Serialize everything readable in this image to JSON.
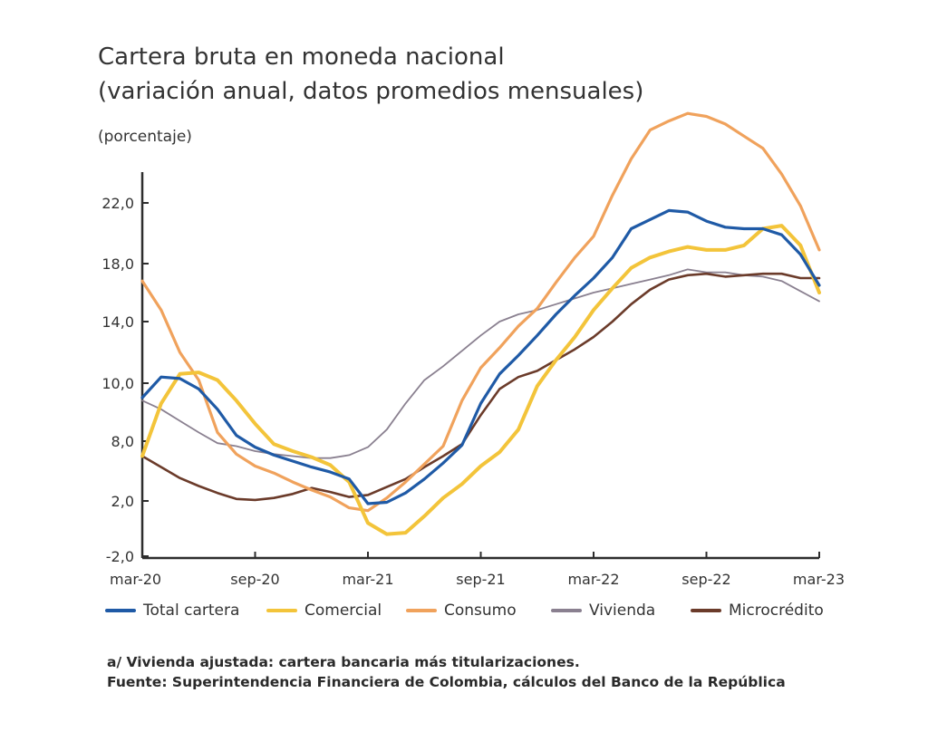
{
  "title_line1": "Cartera bruta en moneda nacional",
  "title_line2": "(variación anual, datos promedios mensuales)",
  "unit_label": "(porcentaje)",
  "notes": {
    "note": "a/ Vivienda ajustada: cartera bancaria más titularizaciones.",
    "source": "Fuente: Superintendencia Financiera de Colombia, cálculos del Banco de la República"
  },
  "chart_data": {
    "type": "line",
    "title": "Cartera bruta en moneda nacional (variación anual, datos promedios mensuales)",
    "ylabel": "(porcentaje)",
    "x": [
      "mar-20",
      "abr-20",
      "may-20",
      "jun-20",
      "jul-20",
      "ago-20",
      "sep-20",
      "oct-20",
      "nov-20",
      "dic-20",
      "ene-21",
      "feb-21",
      "mar-21",
      "abr-21",
      "may-21",
      "jun-21",
      "jul-21",
      "ago-21",
      "sep-21",
      "oct-21",
      "nov-21",
      "dic-21",
      "ene-22",
      "feb-22",
      "mar-22",
      "abr-22",
      "may-22",
      "jun-22",
      "jul-22",
      "ago-22",
      "sep-22",
      "oct-22",
      "nov-22",
      "dic-22",
      "ene-23",
      "feb-23",
      "mar-23"
    ],
    "x_tick_labels": [
      "mar-20",
      "sep-20",
      "mar-21",
      "sep-21",
      "mar-22",
      "sep-22",
      "mar-23"
    ],
    "y_tick_labels": [
      "-2,0",
      "2,0",
      "8,0",
      "10,0",
      "14,0",
      "18,0",
      "22,0"
    ],
    "grid": false,
    "legend_position": "bottom",
    "series": [
      {
        "name": "Total cartera",
        "color": "#1f5aa6",
        "values": [
          9.5,
          10.4,
          10.3,
          9.8,
          9.1,
          8.2,
          7.4,
          6.6,
          6.0,
          5.4,
          4.9,
          4.2,
          1.8,
          1.9,
          2.8,
          4.2,
          5.8,
          7.6,
          9.3,
          10.6,
          11.8,
          13.1,
          14.5,
          15.8,
          17.0,
          18.4,
          20.3,
          20.9,
          21.5,
          21.4,
          20.8,
          20.4,
          20.3,
          20.3,
          19.9,
          18.6,
          16.5
        ]
      },
      {
        "name": "Comercial",
        "color": "#f3c43a",
        "values": [
          6.5,
          9.3,
          10.6,
          10.7,
          10.2,
          9.4,
          8.6,
          7.7,
          7.0,
          6.4,
          5.6,
          3.9,
          0.4,
          -0.4,
          -0.3,
          0.9,
          2.3,
          3.7,
          5.5,
          6.9,
          8.4,
          9.9,
          11.5,
          13.0,
          14.8,
          16.3,
          17.7,
          18.4,
          18.8,
          19.1,
          18.9,
          18.9,
          19.2,
          20.3,
          20.5,
          19.2,
          16.0
        ]
      },
      {
        "name": "Consumo",
        "color": "#f0a25c",
        "values": [
          16.8,
          14.8,
          12.0,
          10.2,
          8.3,
          6.7,
          5.5,
          4.8,
          3.9,
          3.1,
          2.4,
          1.5,
          1.3,
          2.3,
          3.9,
          5.7,
          7.5,
          9.4,
          11.0,
          12.3,
          13.7,
          14.9,
          16.7,
          18.4,
          19.8,
          22.5,
          24.9,
          26.8,
          27.4,
          27.9,
          27.7,
          27.2,
          26.4,
          25.6,
          23.9,
          21.8,
          18.9
        ]
      },
      {
        "name": "Vivienda",
        "color": "#8a8090",
        "values": [
          9.4,
          9.1,
          8.7,
          8.3,
          7.8,
          7.5,
          7.0,
          6.7,
          6.5,
          6.3,
          6.3,
          6.6,
          7.4,
          8.4,
          9.3,
          10.2,
          11.1,
          12.1,
          13.1,
          14.0,
          14.5,
          14.8,
          15.2,
          15.6,
          16.0,
          16.3,
          16.6,
          16.9,
          17.2,
          17.6,
          17.4,
          17.4,
          17.2,
          17.1,
          16.8,
          16.1,
          15.4
        ]
      },
      {
        "name": "Microcrédito",
        "color": "#6b3b2a",
        "values": [
          6.5,
          5.4,
          4.3,
          3.5,
          2.8,
          2.2,
          2.1,
          2.3,
          2.7,
          3.3,
          2.9,
          2.4,
          2.6,
          3.4,
          4.2,
          5.4,
          6.5,
          7.7,
          8.9,
          9.8,
          10.4,
          10.8,
          11.5,
          12.2,
          13.0,
          14.0,
          15.2,
          16.2,
          16.9,
          17.2,
          17.3,
          17.1,
          17.2,
          17.3,
          17.3,
          17.0,
          17.0
        ]
      }
    ]
  }
}
